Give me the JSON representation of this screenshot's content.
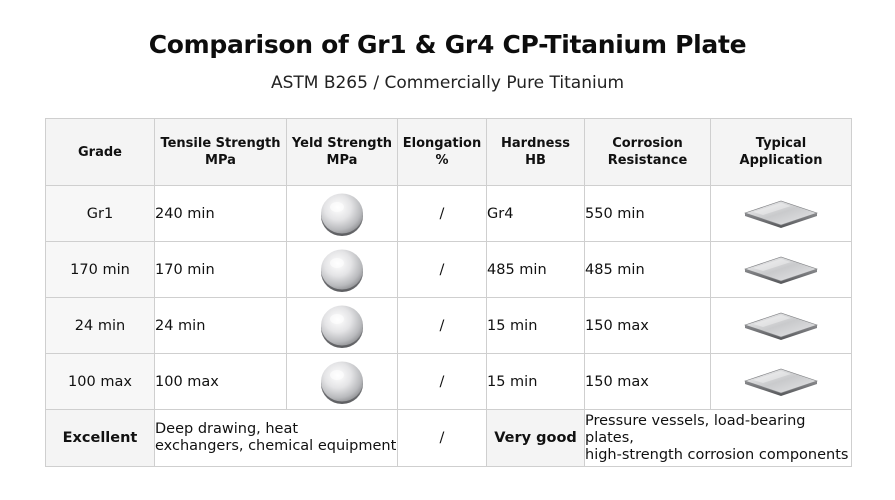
{
  "title": "Comparison of Gr1 & Gr4 CP-Titanium Plate",
  "subtitle": "ASTM B265 / Commercially Pure Titanium",
  "table": {
    "headers": [
      {
        "line1": "Grade",
        "line2": ""
      },
      {
        "line1": "Tensile Strength",
        "line2": "MPa"
      },
      {
        "line1": "Yeld Strength",
        "line2": "MPa"
      },
      {
        "line1": "Elongation",
        "line2": "%"
      },
      {
        "line1": "Hardness",
        "line2": "HB"
      },
      {
        "line1": "Corrosion",
        "line2": "Resistance"
      },
      {
        "line1": "Typical",
        "line2": "Application"
      }
    ],
    "rows": [
      {
        "grade": "Gr1",
        "tensile": "240 min",
        "elongation": "/",
        "hardness": "Gr4",
        "corrosion": "550 min"
      },
      {
        "grade": "170 min",
        "tensile": "170 min",
        "elongation": "/",
        "hardness": "485 min",
        "corrosion": "485 min"
      },
      {
        "grade": "24 min",
        "tensile": "24 min",
        "elongation": "/",
        "hardness": "15 min",
        "corrosion": "150 max"
      },
      {
        "grade": "100 max",
        "tensile": "100 max",
        "elongation": "/",
        "hardness": "15 min",
        "corrosion": "150 max"
      }
    ],
    "last_row": {
      "grade": "Excellent",
      "application_gr1_line1": "Deep drawing, heat",
      "application_gr1_line2": "exchangers, chemical equipment",
      "elongation": "/",
      "hardness": "Very good",
      "application_gr4_line1": "Pressure vessels, load-bearing plates,",
      "application_gr4_line2": "high-strength corrosion components"
    }
  },
  "icons": {
    "disc": "titanium-disc-icon",
    "plate": "titanium-plate-icon"
  },
  "colors": {
    "title": "#0d0d0d",
    "border": "#cfcfcf",
    "header_bg": "#f4f4f4"
  }
}
